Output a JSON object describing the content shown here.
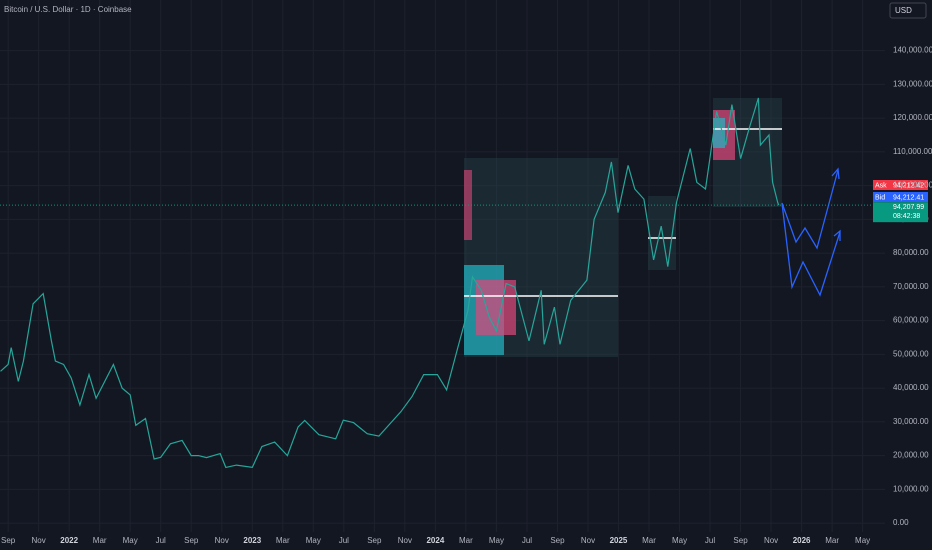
{
  "chart_data": {
    "type": "line",
    "title": "Bitcoin / U.S. Dollar · 1D · Coinbase",
    "currency": "USD",
    "ylim": [
      -5000,
      155000
    ],
    "yticks": [
      {
        "value": 0,
        "label": "0.00"
      },
      {
        "value": 10000,
        "label": "10,000.00"
      },
      {
        "value": 20000,
        "label": "20,000.00"
      },
      {
        "value": 30000,
        "label": "30,000.00"
      },
      {
        "value": 40000,
        "label": "40,000.00"
      },
      {
        "value": 50000,
        "label": "50,000.00"
      },
      {
        "value": 60000,
        "label": "60,000.00"
      },
      {
        "value": 70000,
        "label": "70,000.00"
      },
      {
        "value": 80000,
        "label": "80,000.00"
      },
      {
        "value": 90000,
        "label": "90,000.00"
      },
      {
        "value": 100000,
        "label": "100,000.00"
      },
      {
        "value": 110000,
        "label": "110,000.00"
      },
      {
        "value": 120000,
        "label": "120,000.00"
      },
      {
        "value": 130000,
        "label": "130,000.00"
      },
      {
        "value": 140000,
        "label": "140,000.00"
      }
    ],
    "xlim": [
      "2021-08-15",
      "2026-06-15"
    ],
    "xticks": [
      {
        "value": "2021-09-01",
        "label": "Sep"
      },
      {
        "value": "2021-11-01",
        "label": "Nov"
      },
      {
        "value": "2022-01-01",
        "label": "2022"
      },
      {
        "value": "2022-03-01",
        "label": "Mar"
      },
      {
        "value": "2022-05-01",
        "label": "May"
      },
      {
        "value": "2022-07-01",
        "label": "Jul"
      },
      {
        "value": "2022-09-01",
        "label": "Sep"
      },
      {
        "value": "2022-11-01",
        "label": "Nov"
      },
      {
        "value": "2023-01-01",
        "label": "2023"
      },
      {
        "value": "2023-03-01",
        "label": "Mar"
      },
      {
        "value": "2023-05-01",
        "label": "May"
      },
      {
        "value": "2023-07-01",
        "label": "Jul"
      },
      {
        "value": "2023-09-01",
        "label": "Sep"
      },
      {
        "value": "2023-11-01",
        "label": "Nov"
      },
      {
        "value": "2024-01-01",
        "label": "2024"
      },
      {
        "value": "2024-03-01",
        "label": "Mar"
      },
      {
        "value": "2024-05-01",
        "label": "May"
      },
      {
        "value": "2024-07-01",
        "label": "Jul"
      },
      {
        "value": "2024-09-01",
        "label": "Sep"
      },
      {
        "value": "2024-11-01",
        "label": "Nov"
      },
      {
        "value": "2025-01-01",
        "label": "2025"
      },
      {
        "value": "2025-03-01",
        "label": "Mar"
      },
      {
        "value": "2025-05-01",
        "label": "May"
      },
      {
        "value": "2025-07-01",
        "label": "Jul"
      },
      {
        "value": "2025-09-01",
        "label": "Sep"
      },
      {
        "value": "2025-11-01",
        "label": "Nov"
      },
      {
        "value": "2026-01-01",
        "label": "2026"
      },
      {
        "value": "2026-03-01",
        "label": "Mar"
      },
      {
        "value": "2026-05-01",
        "label": "May"
      }
    ],
    "grid": true,
    "x": [
      "2021-08-16",
      "2021-09-01",
      "2021-09-07",
      "2021-09-21",
      "2021-10-01",
      "2021-10-20",
      "2021-11-10",
      "2021-11-26",
      "2021-12-04",
      "2021-12-20",
      "2022-01-05",
      "2022-01-22",
      "2022-02-10",
      "2022-02-24",
      "2022-03-28",
      "2022-04-15",
      "2022-05-01",
      "2022-05-12",
      "2022-06-01",
      "2022-06-18",
      "2022-07-01",
      "2022-07-20",
      "2022-08-13",
      "2022-08-31",
      "2022-09-15",
      "2022-10-01",
      "2022-10-28",
      "2022-11-09",
      "2022-11-30",
      "2022-12-31",
      "2023-01-20",
      "2023-02-15",
      "2023-03-10",
      "2023-03-31",
      "2023-04-14",
      "2023-05-12",
      "2023-06-15",
      "2023-06-30",
      "2023-07-20",
      "2023-08-17",
      "2023-09-10",
      "2023-10-23",
      "2023-11-15",
      "2023-12-08",
      "2024-01-05",
      "2024-01-23",
      "2024-02-15",
      "2024-03-05",
      "2024-03-14",
      "2024-04-01",
      "2024-04-17",
      "2024-05-01",
      "2024-05-20",
      "2024-06-07",
      "2024-07-05",
      "2024-07-29",
      "2024-08-05",
      "2024-08-25",
      "2024-09-06",
      "2024-09-27",
      "2024-10-29",
      "2024-11-13",
      "2024-12-05",
      "2024-12-17",
      "2024-12-30",
      "2025-01-20",
      "2025-02-03",
      "2025-02-21",
      "2025-03-10",
      "2025-03-25",
      "2025-04-08",
      "2025-04-25",
      "2025-05-22",
      "2025-06-05",
      "2025-06-22",
      "2025-07-14",
      "2025-08-02",
      "2025-08-14",
      "2025-09-01",
      "2025-09-18",
      "2025-10-06",
      "2025-10-10",
      "2025-10-27",
      "2025-11-04",
      "2025-11-14",
      "2025-11-16"
    ],
    "series": [
      {
        "color": "#26a69a",
        "values": [
          45000,
          47000,
          52000,
          42000,
          48000,
          65000,
          68000,
          54000,
          48000,
          47000,
          43000,
          35000,
          44000,
          37000,
          47000,
          40000,
          38000,
          29000,
          31000,
          19000,
          19500,
          23500,
          24500,
          20000,
          20000,
          19400,
          20600,
          16500,
          17200,
          16500,
          22700,
          24000,
          20000,
          28500,
          30400,
          26200,
          25000,
          30500,
          29800,
          26500,
          25800,
          33000,
          37500,
          44000,
          44000,
          39500,
          52000,
          63000,
          73000,
          69000,
          61000,
          57000,
          71000,
          70000,
          54000,
          69000,
          53000,
          64000,
          53000,
          66000,
          72000,
          90000,
          98000,
          107000,
          92000,
          106000,
          99000,
          96000,
          78000,
          88000,
          76000,
          95000,
          111000,
          101000,
          99000,
          122000,
          112000,
          124000,
          108000,
          117000,
          126000,
          112000,
          115000,
          101000,
          95000,
          94208
        ]
      }
    ],
    "ask": {
      "label": "Ask",
      "price": "94,212.42"
    },
    "bid": {
      "label": "Bid",
      "price": "94,212.41"
    },
    "last_price": {
      "value": 94207.99,
      "label": "94,207.99"
    },
    "countdown": "08:42:38"
  }
}
